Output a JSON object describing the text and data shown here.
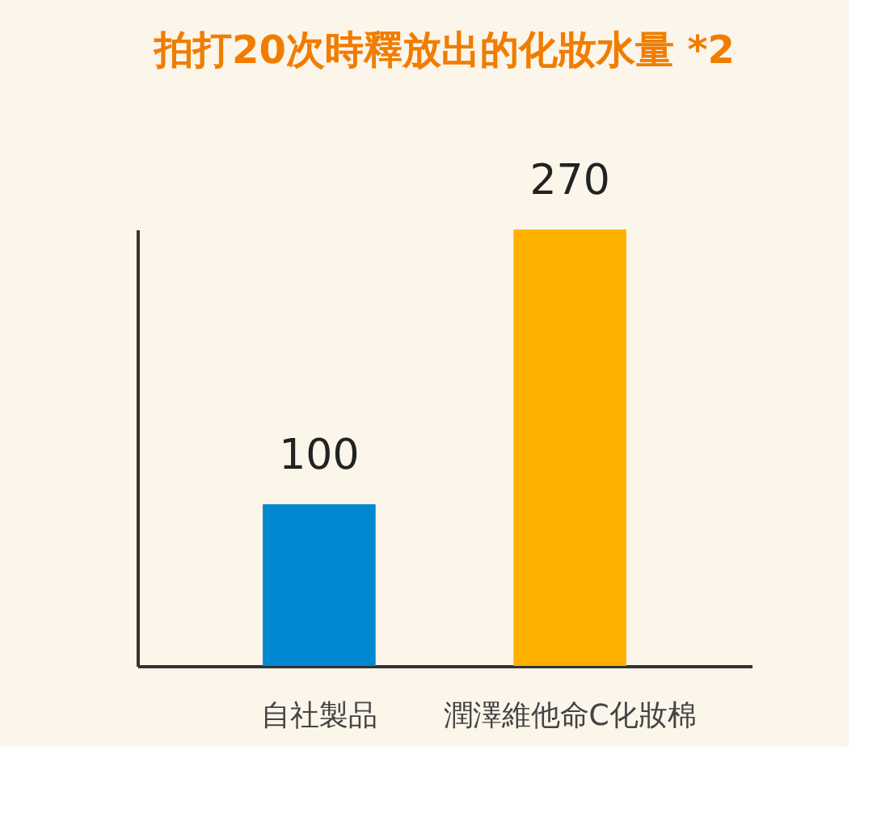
{
  "chart_data": {
    "type": "bar",
    "title": "拍打20次時釋放出的化妝水量 *2",
    "categories": [
      "自社製品",
      "潤澤維他命C化妝棉"
    ],
    "values": [
      100,
      270
    ],
    "colors": [
      "#0088d0",
      "#ffb000"
    ],
    "data_labels": true,
    "tick_labels": "x",
    "grid": false
  }
}
